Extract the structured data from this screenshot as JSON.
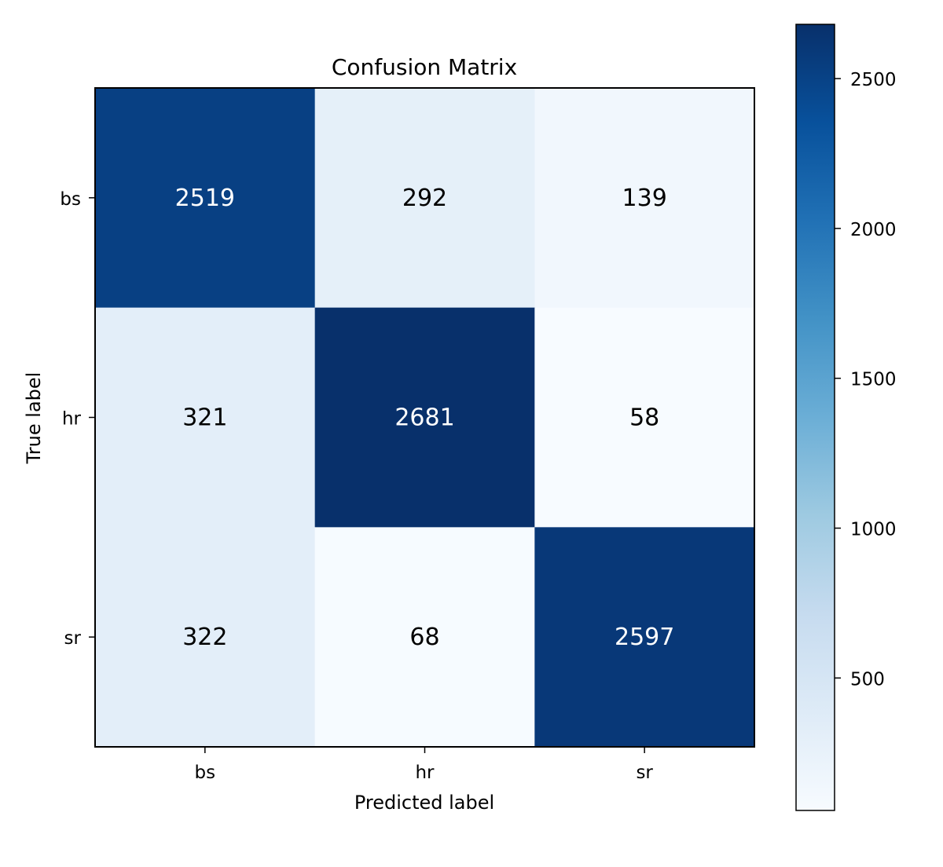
{
  "chart_data": {
    "type": "heatmap",
    "title": "Confusion Matrix",
    "xlabel": "Predicted label",
    "ylabel": "True label",
    "x_categories": [
      "bs",
      "hr",
      "sr"
    ],
    "y_categories": [
      "bs",
      "hr",
      "sr"
    ],
    "values": [
      [
        2519,
        292,
        139
      ],
      [
        321,
        2681,
        58
      ],
      [
        322,
        68,
        2597
      ]
    ],
    "colormap": "Blues",
    "colorbar": {
      "range": [
        58,
        2681
      ],
      "ticks": [
        500,
        1000,
        1500,
        2000,
        2500
      ],
      "position": "right"
    },
    "grid": false
  }
}
